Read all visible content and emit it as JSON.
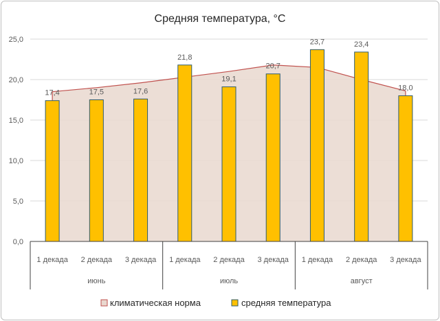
{
  "chart_data": {
    "type": "bar",
    "title": "Средняя температура, °С",
    "ylim": [
      0,
      25
    ],
    "yticks": [
      "0,0",
      "5,0",
      "10,0",
      "15,0",
      "20,0",
      "25,0"
    ],
    "ytick_values": [
      0,
      5,
      10,
      15,
      20,
      25
    ],
    "grid": true,
    "legend": "bottom",
    "categories": [
      "1 декада",
      "2 декада",
      "3 декада",
      "1 декада",
      "2 декада",
      "3 декада",
      "1 декада",
      "2 декада",
      "3 декада"
    ],
    "groups": [
      {
        "label": "июнь",
        "count": 3
      },
      {
        "label": "июль",
        "count": 3
      },
      {
        "label": "август",
        "count": 3
      }
    ],
    "series": [
      {
        "name": "климатическая норма",
        "kind": "area",
        "color": "#e9d8cf",
        "line_color": "#c0504d",
        "values": [
          18.5,
          19.0,
          19.6,
          20.3,
          21.0,
          21.8,
          21.5,
          20.0,
          18.6
        ]
      },
      {
        "name": "средняя температура",
        "kind": "bar",
        "color": "#ffc000",
        "border_color": "#2f5c6e",
        "values": [
          17.4,
          17.5,
          17.6,
          21.8,
          19.1,
          20.7,
          23.7,
          23.4,
          18.0
        ],
        "labels": [
          "17,4",
          "17,5",
          "17,6",
          "21,8",
          "19,1",
          "20,7",
          "23,7",
          "23,4",
          "18,0"
        ]
      }
    ]
  }
}
